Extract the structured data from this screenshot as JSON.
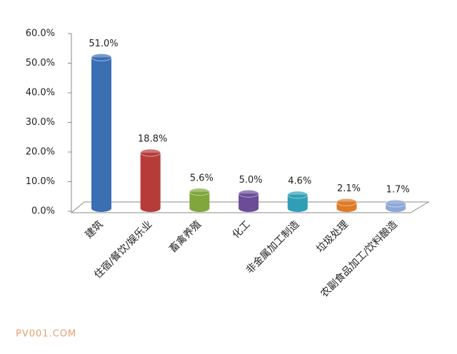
{
  "chart_data": {
    "type": "bar3d",
    "categories": [
      "建筑",
      "住宿/餐饮/娱乐业",
      "畜禽养殖",
      "化工",
      "非金属加工制造",
      "垃圾处理",
      "农副食品加工/饮料酿造"
    ],
    "values": [
      51.0,
      18.8,
      5.6,
      5.0,
      4.6,
      2.1,
      1.7
    ],
    "value_labels": [
      "51.0%",
      "18.8%",
      "5.6%",
      "5.0%",
      "4.6%",
      "2.1%",
      "1.7%"
    ],
    "colors": [
      "#3b6fb4",
      "#b63c3a",
      "#80a63c",
      "#6b4d97",
      "#2f9fb7",
      "#df7a27",
      "#8ca7d8"
    ],
    "ylim": [
      0,
      60
    ],
    "yticks": [
      {
        "value": 0,
        "label": "0.0%"
      },
      {
        "value": 10,
        "label": "10.0%"
      },
      {
        "value": 20,
        "label": "20.0%"
      },
      {
        "value": 30,
        "label": "30.0%"
      },
      {
        "value": 40,
        "label": "40.0%"
      },
      {
        "value": 50,
        "label": "50.0%"
      },
      {
        "value": 60,
        "label": "60.0%"
      }
    ]
  },
  "watermark": "PV001.COM"
}
